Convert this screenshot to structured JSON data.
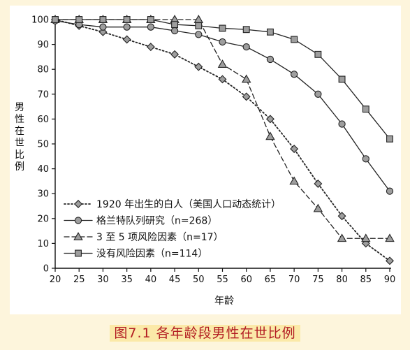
{
  "caption": "图7.1  各年龄段男性在世比例",
  "chart_data": {
    "type": "line",
    "title": "",
    "xlabel": "年龄",
    "ylabel": "男性在世比例",
    "xlim": [
      20,
      90
    ],
    "ylim": [
      0,
      100
    ],
    "x": [
      20,
      25,
      30,
      35,
      40,
      45,
      50,
      55,
      60,
      65,
      70,
      75,
      80,
      85,
      90
    ],
    "xticks": [
      "20",
      "25",
      "30",
      "35",
      "40",
      "45",
      "50",
      "55",
      "60",
      "65",
      "70",
      "75",
      "80",
      "85",
      "90"
    ],
    "yticks": [
      "0",
      "10",
      "20",
      "30",
      "40",
      "50",
      "60",
      "70",
      "80",
      "90",
      "100"
    ],
    "grid": false,
    "legend_position": "bottom-left",
    "series": [
      {
        "name": "1920 年出生的白人（美国人口动态统计）",
        "marker": "diamond",
        "line_style": "dotted",
        "values": [
          100,
          97.5,
          95,
          92,
          89,
          86,
          81,
          76,
          69,
          60,
          48,
          34,
          21,
          10,
          3
        ]
      },
      {
        "name": "格兰特队列研究（n=268）",
        "marker": "circle",
        "line_style": "solid",
        "values": [
          99.5,
          98,
          97,
          97,
          97,
          95.5,
          94,
          91,
          89,
          84,
          78,
          70,
          58,
          44,
          31
        ]
      },
      {
        "name": "3 至 5 项风险因素（n=17）",
        "marker": "triangle",
        "line_style": "dashed",
        "values": [
          100,
          100,
          100,
          100,
          100,
          100,
          100,
          82,
          76,
          53,
          35,
          24,
          12,
          12,
          12
        ]
      },
      {
        "name": "没有风险因素（n=114）",
        "marker": "square",
        "line_style": "solid",
        "values": [
          100,
          100,
          100,
          100,
          100,
          98,
          97.5,
          96.5,
          96,
          95,
          92,
          86,
          76,
          64,
          52
        ]
      }
    ]
  }
}
